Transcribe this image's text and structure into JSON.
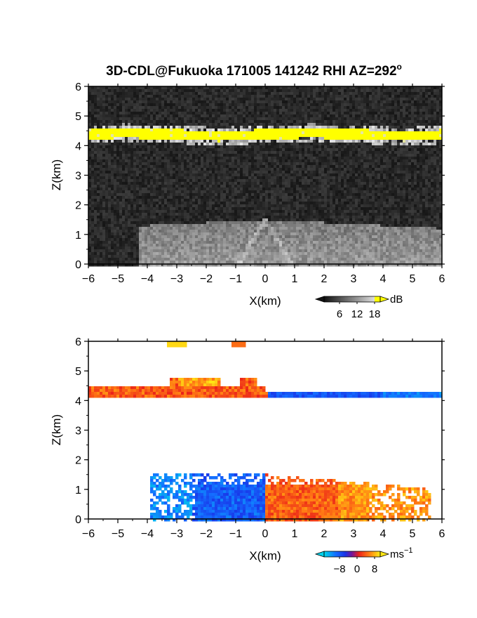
{
  "figure_title": "3D-CDL@Fukuoka 171005 141242 RHI AZ=292",
  "title_degree_symbol": "o",
  "colors": {
    "echo_bright": "#ffff00",
    "background_noise": "#2a2a2a",
    "velocity_positive": "#ff3a1a",
    "velocity_negative": "#1a3aff"
  },
  "chart_data": [
    {
      "type": "heatmap",
      "name": "reflectivity panel",
      "xlabel": "X(km)",
      "ylabel": "Z(km)",
      "xlim": [
        -6,
        6
      ],
      "ylim": [
        0,
        6
      ],
      "xticks": [
        -6,
        -5,
        -4,
        -3,
        -2,
        -1,
        0,
        1,
        2,
        3,
        4,
        5,
        6
      ],
      "yticks": [
        0,
        1,
        2,
        3,
        4,
        5,
        6
      ],
      "colorbar": {
        "unit": "dB",
        "ticks": [
          6,
          12,
          18
        ],
        "tick_labels": [
          "6",
          "12",
          "18"
        ]
      },
      "features": {
        "cloud_layer_z_km": [
          4.2,
          4.55
        ],
        "boundary_layer_top_km": 1.5
      }
    },
    {
      "type": "heatmap",
      "name": "doppler velocity panel",
      "xlabel": "X(km)",
      "ylabel": "Z(km)",
      "xlim": [
        -6,
        6
      ],
      "ylim": [
        0,
        6
      ],
      "xticks": [
        -6,
        -5,
        -4,
        -3,
        -2,
        -1,
        0,
        1,
        2,
        3,
        4,
        5,
        6
      ],
      "yticks": [
        0,
        1,
        2,
        3,
        4,
        5,
        6
      ],
      "colorbar": {
        "unit": "ms",
        "unit_exponent": "−1",
        "ticks": [
          -8,
          0,
          8
        ],
        "tick_labels": [
          "−8",
          "0",
          "8"
        ]
      },
      "features": {
        "cloud_layer_z_km": [
          4.15,
          4.6
        ],
        "boundary_layer_top_km": 1.5,
        "sign_change_x_km": 0
      }
    }
  ]
}
